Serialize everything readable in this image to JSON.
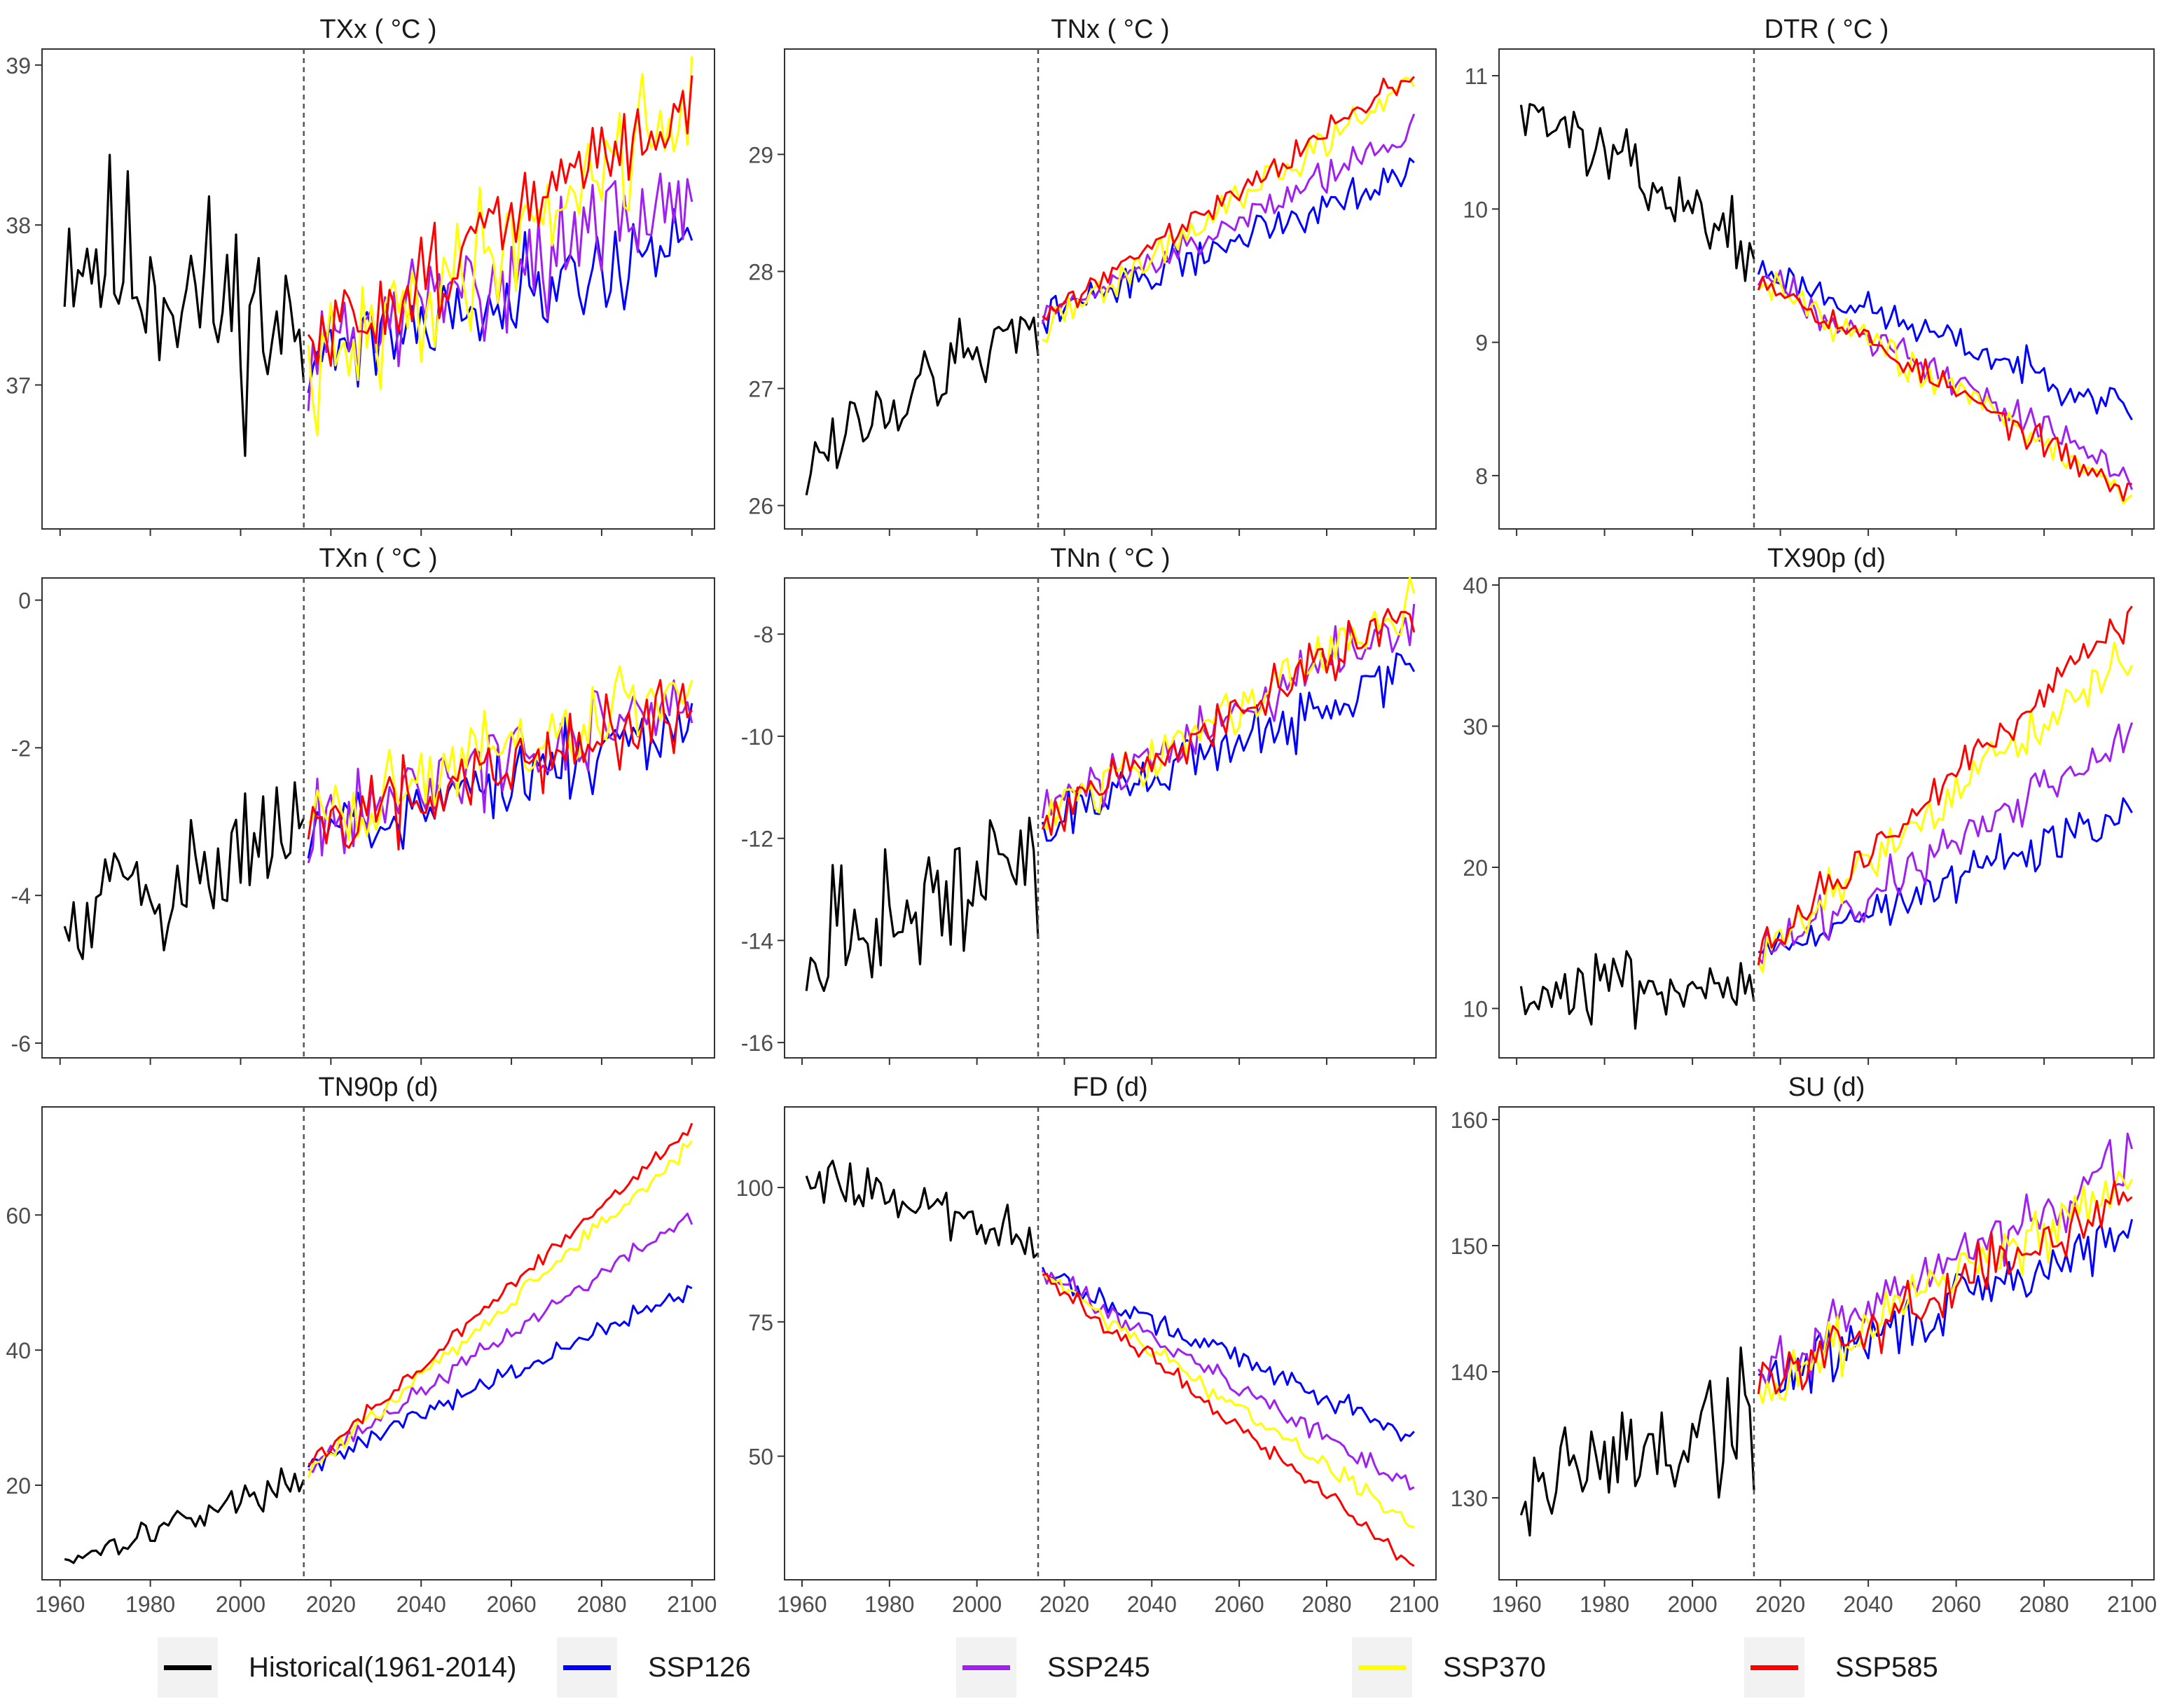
{
  "colors": {
    "historical": "#000000",
    "ssp126": "#0000ff",
    "ssp245": "#a020f0",
    "ssp370": "#ffff00",
    "ssp585": "#ff0000",
    "axis": "#333333",
    "divider": "#555555"
  },
  "legend": [
    {
      "key": "historical",
      "label": "Historical(1961-2014)"
    },
    {
      "key": "ssp126",
      "label": "SSP126"
    },
    {
      "key": "ssp245",
      "label": "SSP245"
    },
    {
      "key": "ssp370",
      "label": "SSP370"
    },
    {
      "key": "ssp585",
      "label": "SSP585"
    }
  ],
  "chart_data": [
    {
      "type": "line",
      "title": "TXx ( °C )",
      "ylim": [
        36.1,
        39.1
      ],
      "yticks": [
        37,
        38,
        39
      ],
      "yticklabels": [
        "37",
        "38",
        "39"
      ],
      "xlim": [
        1956,
        2105
      ],
      "xticks": [
        1960,
        1980,
        2000,
        2020,
        2040,
        2060,
        2080,
        2100
      ],
      "xticklabels": [],
      "divider": 2014,
      "series": {
        "historical": {
          "start": 37.9,
          "end": 37.3,
          "noise": 0.5,
          "seed": 11
        },
        "ssp126": {
          "start": 37.2,
          "end": 37.9,
          "noise": 0.22,
          "seed": 21
        },
        "ssp245": {
          "start": 37.2,
          "end": 38.2,
          "noise": 0.25,
          "seed": 31
        },
        "ssp370": {
          "start": 37.0,
          "end": 38.8,
          "noise": 0.3,
          "seed": 41
        },
        "ssp585": {
          "start": 37.2,
          "end": 38.8,
          "noise": 0.22,
          "seed": 51
        }
      }
    },
    {
      "type": "line",
      "title": "TNx ( °C )",
      "ylim": [
        25.8,
        29.9
      ],
      "yticks": [
        26,
        27,
        28,
        29
      ],
      "yticklabels": [
        "26",
        "27",
        "28",
        "29"
      ],
      "xlim": [
        1956,
        2105
      ],
      "xticks": [
        1960,
        1980,
        2000,
        2020,
        2040,
        2060,
        2080,
        2100
      ],
      "xticklabels": [],
      "divider": 2014,
      "series": {
        "historical": {
          "start": 26.4,
          "end": 27.6,
          "noise": 0.28,
          "seed": 12
        },
        "ssp126": {
          "start": 27.6,
          "end": 28.9,
          "noise": 0.12,
          "seed": 22
        },
        "ssp245": {
          "start": 27.6,
          "end": 29.2,
          "noise": 0.11,
          "seed": 32
        },
        "ssp370": {
          "start": 27.5,
          "end": 29.6,
          "noise": 0.11,
          "seed": 42
        },
        "ssp585": {
          "start": 27.6,
          "end": 29.7,
          "noise": 0.08,
          "seed": 52
        }
      }
    },
    {
      "type": "line",
      "title": "DTR ( °C )",
      "ylim": [
        7.6,
        11.2
      ],
      "yticks": [
        8,
        9,
        10,
        11
      ],
      "yticklabels": [
        "8",
        "9",
        "10",
        "11"
      ],
      "xlim": [
        1956,
        2105
      ],
      "xticks": [
        1960,
        1980,
        2000,
        2020,
        2040,
        2060,
        2080,
        2100
      ],
      "xticklabels": [],
      "divider": 2014,
      "series": {
        "historical": {
          "start": 10.8,
          "end": 9.7,
          "noise": 0.18,
          "seed": 13
        },
        "ssp126": {
          "start": 9.55,
          "end": 8.5,
          "noise": 0.1,
          "seed": 23
        },
        "ssp245": {
          "start": 9.5,
          "end": 8.0,
          "noise": 0.1,
          "seed": 33
        },
        "ssp370": {
          "start": 9.5,
          "end": 7.85,
          "noise": 0.1,
          "seed": 43
        },
        "ssp585": {
          "start": 9.5,
          "end": 7.85,
          "noise": 0.08,
          "seed": 53
        }
      }
    },
    {
      "type": "line",
      "title": "TXn ( °C )",
      "ylim": [
        -6.2,
        0.3
      ],
      "yticks": [
        -6,
        -4,
        -2,
        0
      ],
      "yticklabels": [
        "-6",
        "-4",
        "-2",
        "0"
      ],
      "xlim": [
        1956,
        2105
      ],
      "xticks": [
        1960,
        1980,
        2000,
        2020,
        2040,
        2060,
        2080,
        2100
      ],
      "xticklabels": [],
      "divider": 2014,
      "series": {
        "historical": {
          "start": -4.1,
          "end": -3.2,
          "noise": 0.8,
          "seed": 14
        },
        "ssp126": {
          "start": -3.2,
          "end": -1.7,
          "noise": 0.42,
          "seed": 24
        },
        "ssp245": {
          "start": -3.1,
          "end": -1.3,
          "noise": 0.45,
          "seed": 34
        },
        "ssp370": {
          "start": -3.0,
          "end": -1.2,
          "noise": 0.45,
          "seed": 44
        },
        "ssp585": {
          "start": -3.1,
          "end": -1.5,
          "noise": 0.4,
          "seed": 54
        }
      }
    },
    {
      "type": "line",
      "title": "TNn ( °C )",
      "ylim": [
        -16.3,
        -6.9
      ],
      "yticks": [
        -16,
        -14,
        -12,
        -10,
        -8
      ],
      "yticklabels": [
        "-16",
        "-14",
        "-12",
        "-10",
        "-8"
      ],
      "xlim": [
        1956,
        2105
      ],
      "xticks": [
        1960,
        1980,
        2000,
        2020,
        2040,
        2060,
        2080,
        2100
      ],
      "xticklabels": [],
      "divider": 2014,
      "series": {
        "historical": {
          "start": -14.3,
          "end": -12.4,
          "noise": 1.0,
          "seed": 15
        },
        "ssp126": {
          "start": -11.8,
          "end": -8.6,
          "noise": 0.4,
          "seed": 25
        },
        "ssp245": {
          "start": -11.6,
          "end": -7.7,
          "noise": 0.4,
          "seed": 35
        },
        "ssp370": {
          "start": -11.6,
          "end": -7.4,
          "noise": 0.4,
          "seed": 45
        },
        "ssp585": {
          "start": -11.6,
          "end": -7.6,
          "noise": 0.35,
          "seed": 55
        }
      }
    },
    {
      "type": "line",
      "title": "TX90p (d)",
      "ylim": [
        6.5,
        40.5
      ],
      "yticks": [
        10,
        20,
        30,
        40
      ],
      "yticklabels": [
        "10",
        "20",
        "30",
        "40"
      ],
      "xlim": [
        1956,
        2105
      ],
      "xticks": [
        1960,
        1980,
        2000,
        2020,
        2040,
        2060,
        2080,
        2100
      ],
      "xticklabels": [],
      "divider": 2014,
      "series": {
        "historical": {
          "start": 11,
          "end": 12,
          "noise": 1.8,
          "seed": 16
        },
        "ssp126": {
          "start": 14,
          "end": 24,
          "noise": 1.3,
          "seed": 26
        },
        "ssp245": {
          "start": 14,
          "end": 29,
          "noise": 1.3,
          "seed": 36
        },
        "ssp370": {
          "start": 14,
          "end": 35,
          "noise": 1.2,
          "seed": 46
        },
        "ssp585": {
          "start": 14,
          "end": 38,
          "noise": 1.0,
          "seed": 56
        }
      }
    },
    {
      "type": "line",
      "title": "TN90p (d)",
      "ylim": [
        6,
        76
      ],
      "yticks": [
        20,
        40,
        60
      ],
      "yticklabels": [
        "20",
        "40",
        "60"
      ],
      "xlim": [
        1956,
        2105
      ],
      "xticks": [
        1960,
        1980,
        2000,
        2020,
        2040,
        2060,
        2080,
        2100
      ],
      "xticklabels": [
        "1960",
        "1980",
        "2000",
        "2020",
        "2040",
        "2060",
        "2080",
        "2100"
      ],
      "divider": 2014,
      "series": {
        "historical": {
          "start": 9,
          "end": 21,
          "noise": 1.6,
          "seed": 17
        },
        "ssp126": {
          "start": 23,
          "end": 49,
          "noise": 1.2,
          "seed": 27
        },
        "ssp245": {
          "start": 23,
          "end": 60,
          "noise": 1.0,
          "seed": 37
        },
        "ssp370": {
          "start": 22,
          "end": 70,
          "noise": 1.0,
          "seed": 47
        },
        "ssp585": {
          "start": 23,
          "end": 73,
          "noise": 0.8,
          "seed": 57
        }
      }
    },
    {
      "type": "line",
      "title": "FD (d)",
      "ylim": [
        27,
        115
      ],
      "yticks": [
        50,
        75,
        100
      ],
      "yticklabels": [
        "50",
        "75",
        "100"
      ],
      "xlim": [
        1956,
        2105
      ],
      "xticks": [
        1960,
        1980,
        2000,
        2020,
        2040,
        2060,
        2080,
        2100
      ],
      "xticklabels": [
        "1960",
        "1980",
        "2000",
        "2020",
        "2040",
        "2060",
        "2080",
        "2100"
      ],
      "divider": 2014,
      "series": {
        "historical": {
          "start": 103,
          "end": 90,
          "noise": 3.2,
          "seed": 18
        },
        "ssp126": {
          "start": 84,
          "end": 54,
          "noise": 1.6,
          "seed": 28
        },
        "ssp245": {
          "start": 84,
          "end": 44,
          "noise": 1.6,
          "seed": 38
        },
        "ssp370": {
          "start": 84,
          "end": 37,
          "noise": 1.5,
          "seed": 48
        },
        "ssp585": {
          "start": 84,
          "end": 30,
          "noise": 1.3,
          "seed": 58
        }
      }
    },
    {
      "type": "line",
      "title": "SU (d)",
      "ylim": [
        123.5,
        161
      ],
      "yticks": [
        130,
        140,
        150,
        160
      ],
      "yticklabels": [
        "130",
        "140",
        "150",
        "160"
      ],
      "xlim": [
        1956,
        2105
      ],
      "xticks": [
        1960,
        1980,
        2000,
        2020,
        2040,
        2060,
        2080,
        2100
      ],
      "xticklabels": [
        "1960",
        "1980",
        "2000",
        "2020",
        "2040",
        "2060",
        "2080",
        "2100"
      ],
      "divider": 2014,
      "series": {
        "historical": {
          "start": 131,
          "end": 136,
          "noise": 4.3,
          "seed": 19
        },
        "ssp126": {
          "start": 139,
          "end": 151,
          "noise": 1.8,
          "seed": 29
        },
        "ssp245": {
          "start": 140,
          "end": 157,
          "noise": 1.8,
          "seed": 39
        },
        "ssp370": {
          "start": 139,
          "end": 155,
          "noise": 1.8,
          "seed": 49
        },
        "ssp585": {
          "start": 139,
          "end": 154,
          "noise": 1.5,
          "seed": 59
        }
      }
    }
  ]
}
